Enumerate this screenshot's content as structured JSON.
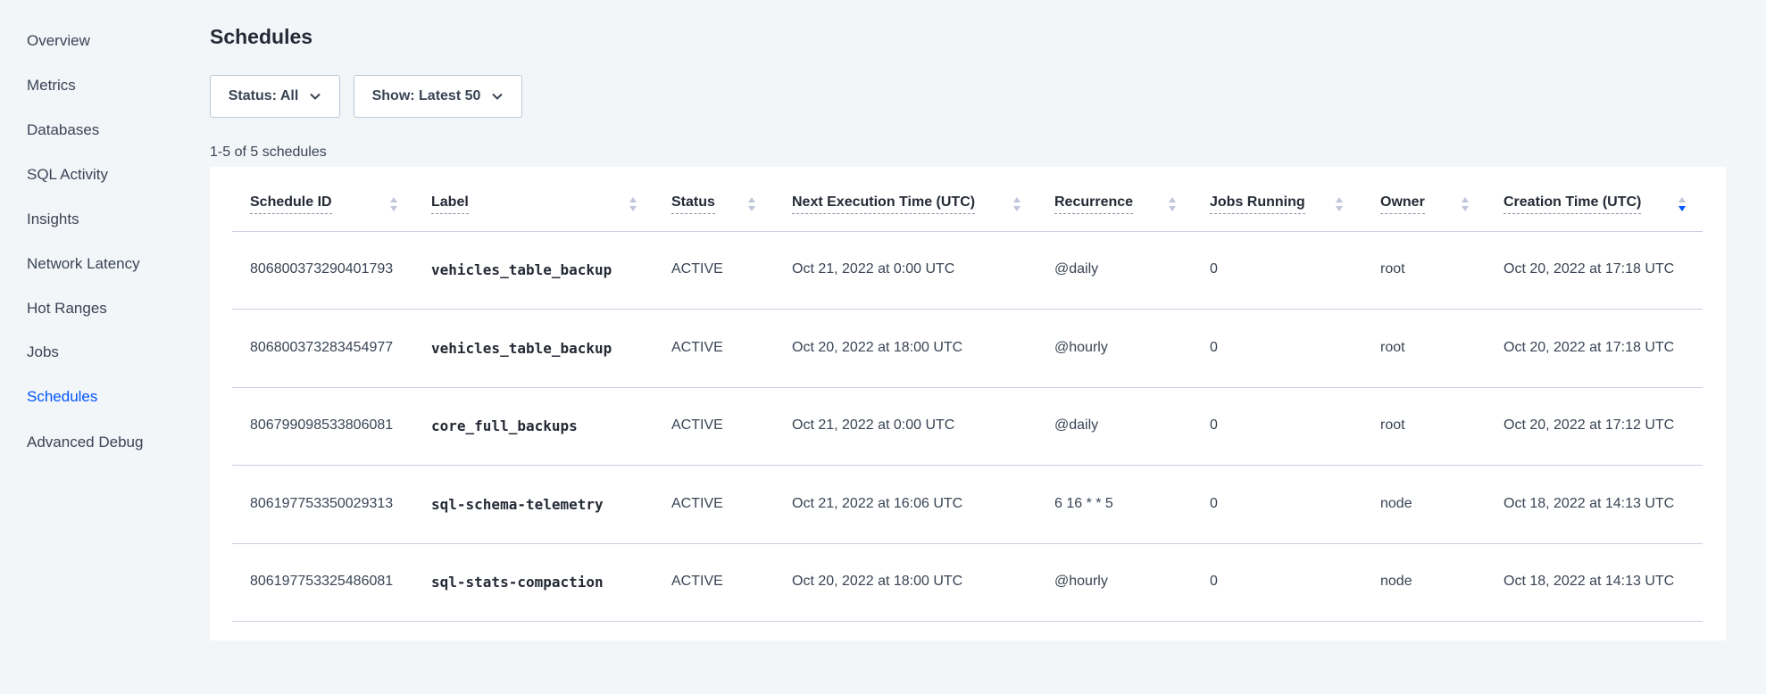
{
  "sidebar": {
    "items": [
      {
        "label": "Overview"
      },
      {
        "label": "Metrics"
      },
      {
        "label": "Databases"
      },
      {
        "label": "SQL Activity"
      },
      {
        "label": "Insights"
      },
      {
        "label": "Network Latency"
      },
      {
        "label": "Hot Ranges"
      },
      {
        "label": "Jobs"
      },
      {
        "label": "Schedules",
        "active": true
      },
      {
        "label": "Advanced Debug"
      }
    ]
  },
  "page": {
    "title": "Schedules",
    "status_filter": "Status: All",
    "show_filter": "Show: Latest 50",
    "count": "1-5 of 5 schedules"
  },
  "colors": {
    "active": "#0055ff",
    "text": "#394455",
    "sort_inactive": "#c0c6d9"
  },
  "table": {
    "columns": [
      "Schedule ID",
      "Label",
      "Status",
      "Next Execution Time (UTC)",
      "Recurrence",
      "Jobs Running",
      "Owner",
      "Creation Time (UTC)"
    ],
    "sorted_column": "Creation Time (UTC)",
    "sort_direction": "descending",
    "rows": [
      [
        "806800373290401793",
        "vehicles_table_backup",
        "ACTIVE",
        "Oct 21, 2022 at 0:00 UTC",
        "@daily",
        "0",
        "root",
        "Oct 20, 2022 at 17:18 UTC"
      ],
      [
        "806800373283454977",
        "vehicles_table_backup",
        "ACTIVE",
        "Oct 20, 2022 at 18:00 UTC",
        "@hourly",
        "0",
        "root",
        "Oct 20, 2022 at 17:18 UTC"
      ],
      [
        "806799098533806081",
        "core_full_backups",
        "ACTIVE",
        "Oct 21, 2022 at 0:00 UTC",
        "@daily",
        "0",
        "root",
        "Oct 20, 2022 at 17:12 UTC"
      ],
      [
        "806197753350029313",
        "sql-schema-telemetry",
        "ACTIVE",
        "Oct 21, 2022 at 16:06 UTC",
        "6 16 * * 5",
        "0",
        "node",
        "Oct 18, 2022 at 14:13 UTC"
      ],
      [
        "806197753325486081",
        "sql-stats-compaction",
        "ACTIVE",
        "Oct 20, 2022 at 18:00 UTC",
        "@hourly",
        "0",
        "node",
        "Oct 18, 2022 at 14:13 UTC"
      ]
    ]
  }
}
